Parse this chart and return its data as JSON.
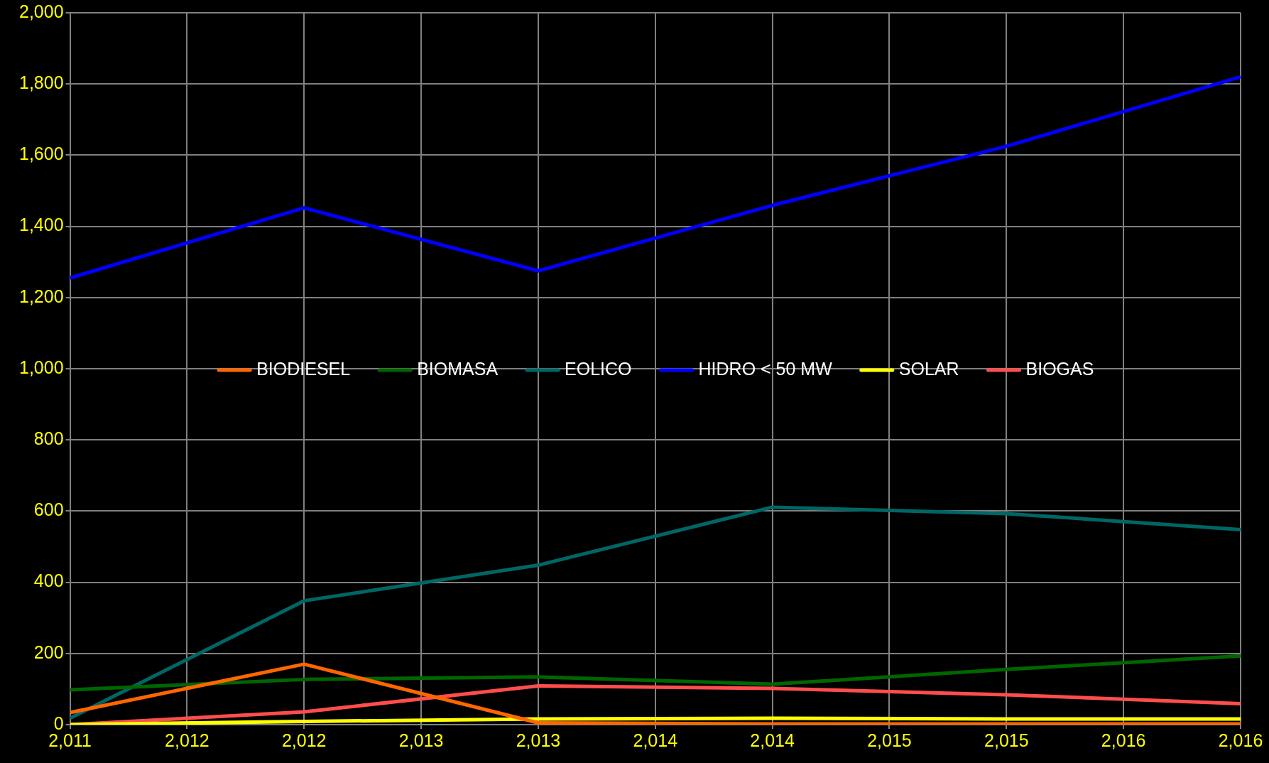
{
  "chart_data": {
    "type": "line",
    "x": [
      2011,
      2012,
      2013,
      2014,
      2015,
      2016
    ],
    "series": [
      {
        "name": "BIODIESEL",
        "color": "#ff6600",
        "values": [
          34,
          170,
          5,
          2,
          2,
          2
        ]
      },
      {
        "name": "BIOMASA",
        "color": "#006600",
        "values": [
          98,
          127,
          134,
          114,
          155,
          193
        ]
      },
      {
        "name": "EOLICO",
        "color": "#006666",
        "values": [
          18,
          348,
          448,
          611,
          593,
          548
        ]
      },
      {
        "name": "HIDRO < 50 MW",
        "color": "#0000ff",
        "values": [
          1255,
          1452,
          1275,
          1459,
          1625,
          1820
        ]
      },
      {
        "name": "SOLAR",
        "color": "#ffff00",
        "values": [
          0,
          9,
          16,
          18,
          16,
          16
        ]
      },
      {
        "name": "BIOGAS",
        "color": "#ff4d4d",
        "values": [
          0,
          36,
          109,
          102,
          84,
          59
        ]
      }
    ],
    "xlim": [
      2011,
      2016
    ],
    "xticks": [
      {
        "value": 2011,
        "label": "2,011"
      },
      {
        "value": 2011.5,
        "label": "2,012"
      },
      {
        "value": 2012,
        "label": "2,012"
      },
      {
        "value": 2012.5,
        "label": "2,013"
      },
      {
        "value": 2013,
        "label": "2,013"
      },
      {
        "value": 2013.5,
        "label": "2,014"
      },
      {
        "value": 2014,
        "label": "2,014"
      },
      {
        "value": 2014.5,
        "label": "2,015"
      },
      {
        "value": 2015,
        "label": "2,015"
      },
      {
        "value": 2015.5,
        "label": "2,016"
      },
      {
        "value": 2016,
        "label": "2,016"
      }
    ],
    "ylim": [
      0,
      2000
    ],
    "yticks": [
      {
        "value": 0,
        "label": "0"
      },
      {
        "value": 200,
        "label": "200"
      },
      {
        "value": 400,
        "label": "400"
      },
      {
        "value": 600,
        "label": "600"
      },
      {
        "value": 800,
        "label": "800"
      },
      {
        "value": 1000,
        "label": "1,000"
      },
      {
        "value": 1200,
        "label": "1,200"
      },
      {
        "value": 1400,
        "label": "1,400"
      },
      {
        "value": 1600,
        "label": "1,600"
      },
      {
        "value": 1800,
        "label": "1,800"
      },
      {
        "value": 2000,
        "label": "2,000"
      }
    ],
    "grid": true,
    "legend": "center",
    "marker": "none",
    "line_style": "solid"
  }
}
